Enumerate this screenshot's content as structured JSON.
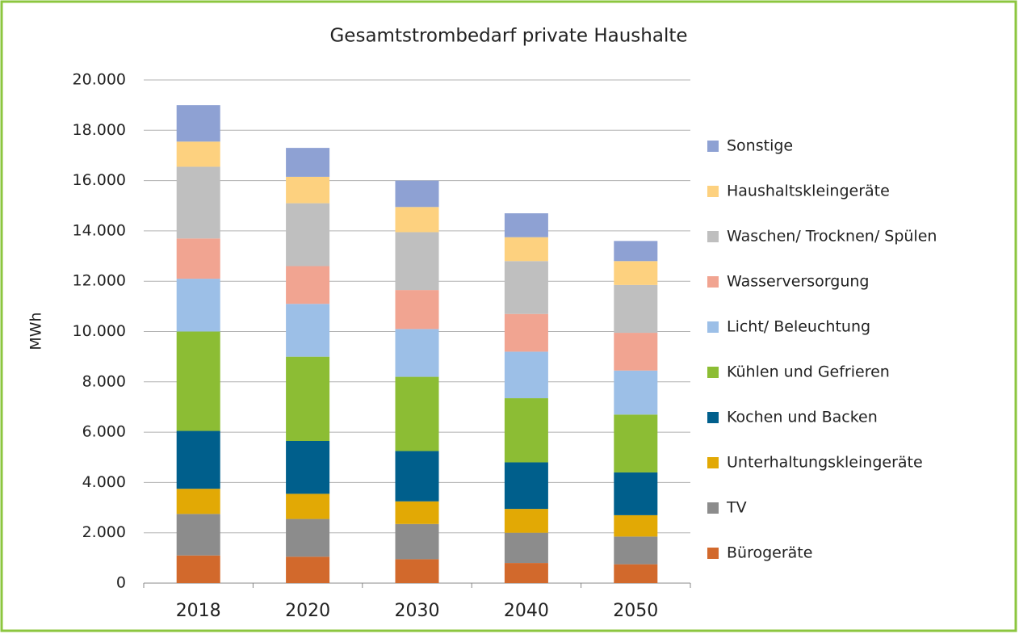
{
  "chart_data": {
    "type": "stacked_bar",
    "title": "Gesamtstrombedarf private Haushalte",
    "y_label": "MWh",
    "categories": [
      "2018",
      "2020",
      "2030",
      "2040",
      "2050"
    ],
    "series": [
      {
        "name": "Bürogeräte",
        "color": "#d2692c",
        "values": [
          1100,
          1050,
          950,
          800,
          750
        ]
      },
      {
        "name": "TV",
        "color": "#8c8c8c",
        "values": [
          1650,
          1500,
          1400,
          1200,
          1100
        ]
      },
      {
        "name": "Unterhaltungskleingeräte",
        "color": "#e2a905",
        "values": [
          1000,
          1000,
          900,
          950,
          850
        ]
      },
      {
        "name": "Kochen und Backen",
        "color": "#005f8c",
        "values": [
          2300,
          2100,
          2000,
          1850,
          1700
        ]
      },
      {
        "name": "Kühlen und Gefrieren",
        "color": "#8cbd34",
        "values": [
          3950,
          3350,
          2950,
          2550,
          2300
        ]
      },
      {
        "name": "Licht/ Beleuchtung",
        "color": "#9cbfe7",
        "values": [
          2100,
          2100,
          1900,
          1850,
          1750
        ]
      },
      {
        "name": "Wasserversorgung",
        "color": "#f1a491",
        "values": [
          1600,
          1500,
          1550,
          1500,
          1500
        ]
      },
      {
        "name": "Waschen/ Trocknen/ Spülen",
        "color": "#bfbfbf",
        "values": [
          2850,
          2500,
          2300,
          2100,
          1900
        ]
      },
      {
        "name": "Haushaltskleingeräte",
        "color": "#fdd17f",
        "values": [
          1000,
          1050,
          1000,
          950,
          950
        ]
      },
      {
        "name": "Sonstige",
        "color": "#8ea1d3",
        "values": [
          1450,
          1150,
          1050,
          950,
          800
        ]
      }
    ],
    "ylim": [
      0,
      20000
    ],
    "yticks": [
      0,
      {
        "value": 2000,
        "label": "2.000"
      },
      {
        "value": 4000,
        "label": "4.000"
      },
      {
        "value": 6000,
        "label": "6.000"
      },
      {
        "value": 8000,
        "label": "8.000"
      },
      {
        "value": 10000,
        "label": "10.000"
      },
      {
        "value": 12000,
        "label": "12.000"
      },
      {
        "value": 14000,
        "label": "14.000"
      },
      {
        "value": 16000,
        "label": "16.000"
      },
      {
        "value": 18000,
        "label": "18.000"
      },
      {
        "value": 20000,
        "label": "20.000"
      }
    ],
    "grid": true,
    "legend": "right"
  }
}
